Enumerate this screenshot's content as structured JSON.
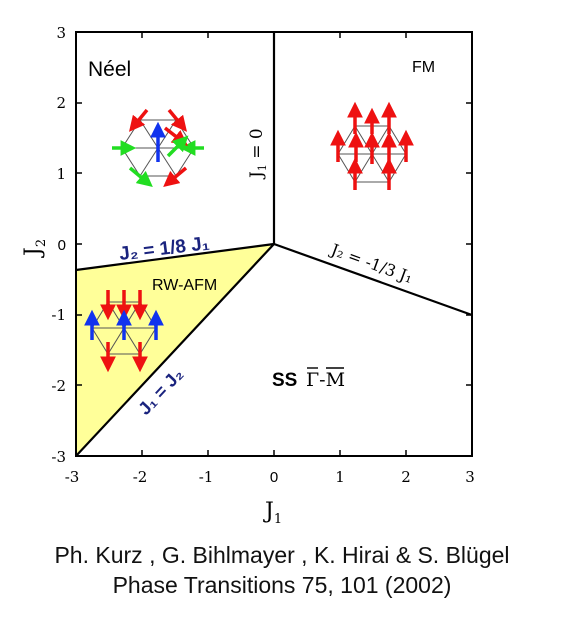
{
  "diagram": {
    "x_axis": {
      "label": "J",
      "label_sub": "1",
      "range": [
        -3,
        3
      ],
      "ticks": [
        "-3",
        "-2",
        "-1",
        "0",
        "1",
        "2",
        "3"
      ]
    },
    "y_axis": {
      "label": "J",
      "label_sub": "2",
      "range": [
        -3,
        3
      ],
      "ticks": [
        "3",
        "2",
        "1",
        "0",
        "-1",
        "-2",
        "-3"
      ]
    },
    "regions": {
      "neel": "Néel",
      "fm": "FM",
      "rw_afm": "RW-AFM",
      "ss": "SS",
      "ss_path": "Γ-M"
    },
    "boundaries": {
      "vertical": {
        "lhs": "J",
        "sub": "1",
        "rhs": " = 0"
      },
      "upper_left": {
        "text": "J₂ = 1/8 J₁"
      },
      "right": {
        "text": "J₂ = -1/3 J₁"
      },
      "diagonal": {
        "text": "J₁ = J₂"
      }
    },
    "colors": {
      "rw_afm_fill": "#ffff99",
      "spin_red": "#ee1111",
      "spin_green": "#22dd22",
      "spin_blue": "#1133ee",
      "boundary_text": "#1a237e",
      "line": "#000000"
    }
  },
  "citation": {
    "line1": "Ph. Kurz , G. Bihlmayer , K. Hirai & S. Blügel",
    "line2": "Phase Transitions 75, 101 (2002)"
  }
}
